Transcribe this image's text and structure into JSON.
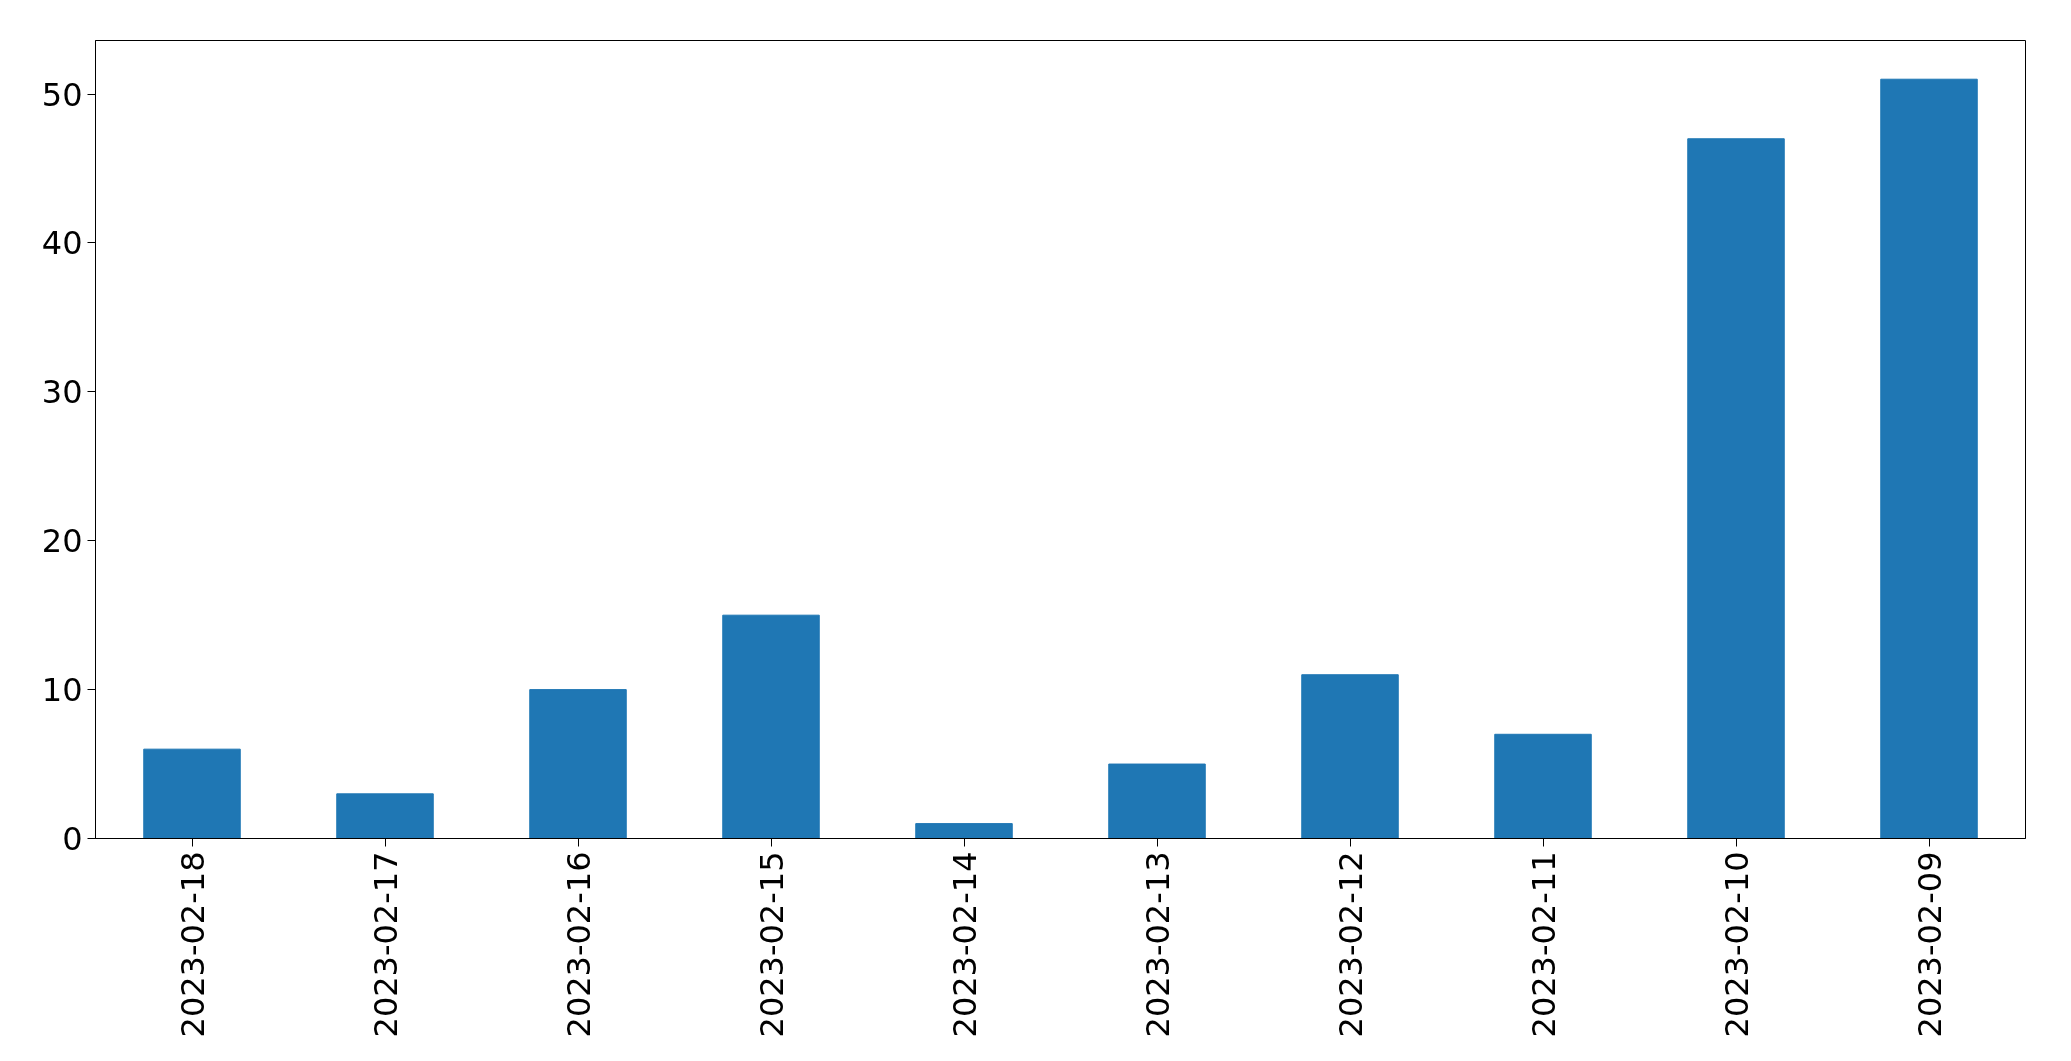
{
  "chart_data": {
    "type": "bar",
    "categories": [
      "2023-02-18",
      "2023-02-17",
      "2023-02-16",
      "2023-02-15",
      "2023-02-14",
      "2023-02-13",
      "2023-02-12",
      "2023-02-11",
      "2023-02-10",
      "2023-02-09"
    ],
    "values": [
      6,
      3,
      10,
      15,
      1,
      5,
      11,
      7,
      47,
      51
    ],
    "color": "#1f77b4",
    "ylim": [
      0,
      53.6
    ],
    "yticks": [
      0,
      10,
      20,
      30,
      40,
      50
    ],
    "grid": false
  }
}
